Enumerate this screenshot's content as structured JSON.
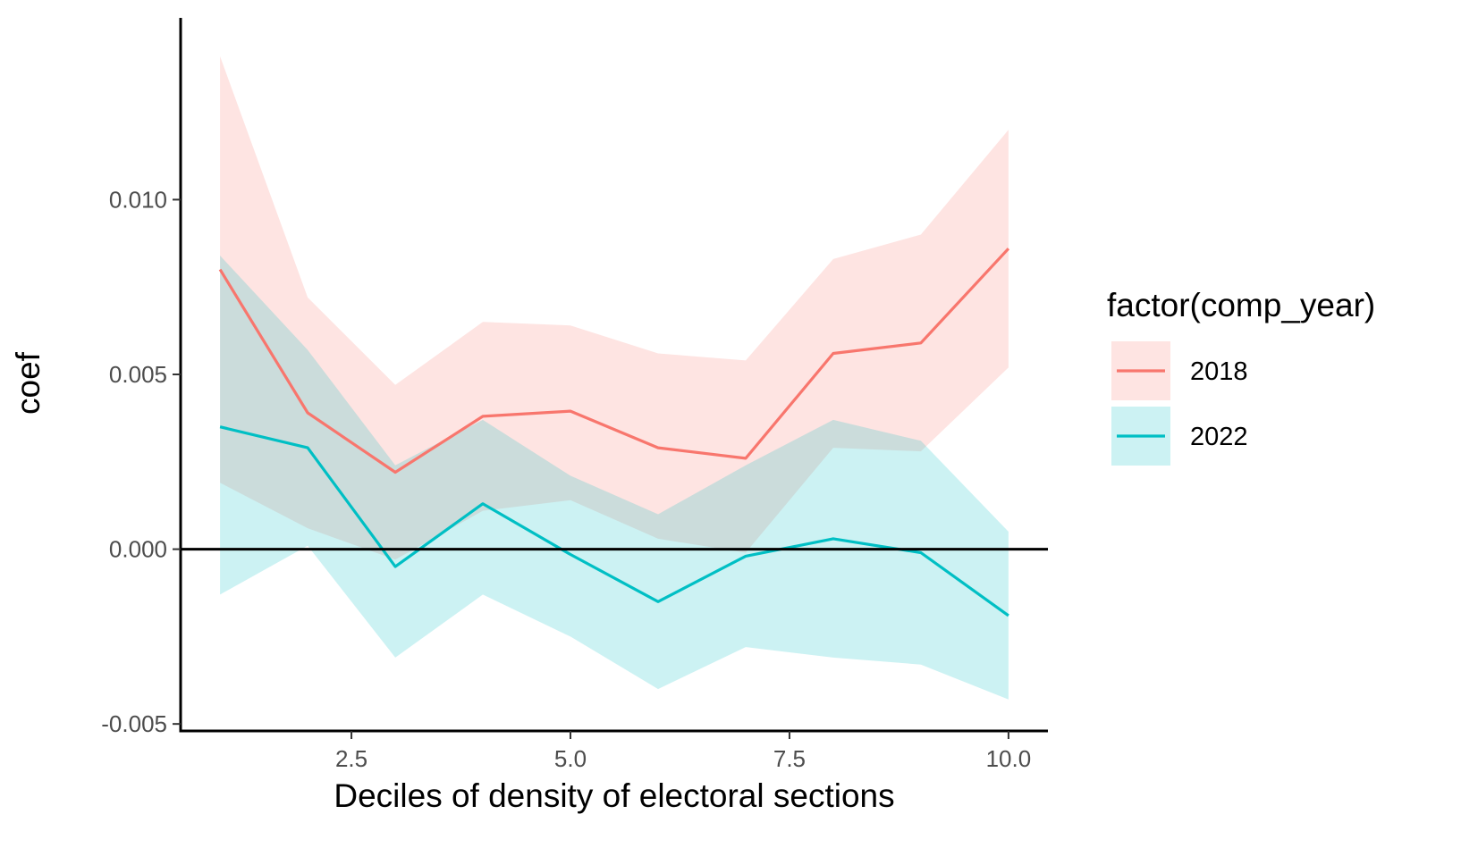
{
  "chart_data": {
    "type": "line",
    "xlabel": "Deciles of density of electoral sections",
    "ylabel": "coef",
    "xlim": [
      0.55,
      10.45
    ],
    "ylim": [
      -0.0052,
      0.0152
    ],
    "x_ticks": [
      2.5,
      5.0,
      7.5,
      10.0
    ],
    "x_tick_labels": [
      "2.5",
      "5.0",
      "7.5",
      "10.0"
    ],
    "y_ticks": [
      -0.005,
      0.0,
      0.005,
      0.01
    ],
    "y_tick_labels": [
      "-0.005",
      "0.000",
      "0.005",
      "0.010"
    ],
    "hline": 0.0,
    "grid": false,
    "legend": {
      "title": "factor(comp_year)",
      "position": "right"
    },
    "x": [
      1,
      2,
      3,
      4,
      5,
      6,
      7,
      8,
      9,
      10
    ],
    "series": [
      {
        "name": "2018",
        "color": "#f8766d",
        "fill": "#fde8e7",
        "values": [
          0.008,
          0.0039,
          0.0022,
          0.0038,
          0.00395,
          0.0029,
          0.0026,
          0.0056,
          0.0059,
          0.0086
        ],
        "lower": [
          0.0019,
          0.0006,
          -0.0003,
          0.0011,
          0.0014,
          0.0003,
          -0.0001,
          0.0029,
          0.0028,
          0.0052
        ],
        "upper": [
          0.0141,
          0.0072,
          0.0047,
          0.0065,
          0.0064,
          0.0056,
          0.0054,
          0.0083,
          0.009,
          0.012
        ]
      },
      {
        "name": "2022",
        "color": "#00bfc4",
        "fill": "#d9f4f5",
        "values": [
          0.0035,
          0.0029,
          -0.0005,
          0.0013,
          -0.00015,
          -0.0015,
          -0.0002,
          0.0003,
          -0.0001,
          -0.0019
        ],
        "lower": [
          -0.0013,
          0.0001,
          -0.0031,
          -0.0013,
          -0.0025,
          -0.004,
          -0.0028,
          -0.0031,
          -0.0033,
          -0.0043
        ],
        "upper": [
          0.0084,
          0.0057,
          0.0024,
          0.0037,
          0.0021,
          0.001,
          0.0024,
          0.0037,
          0.0031,
          0.0005
        ]
      }
    ]
  }
}
